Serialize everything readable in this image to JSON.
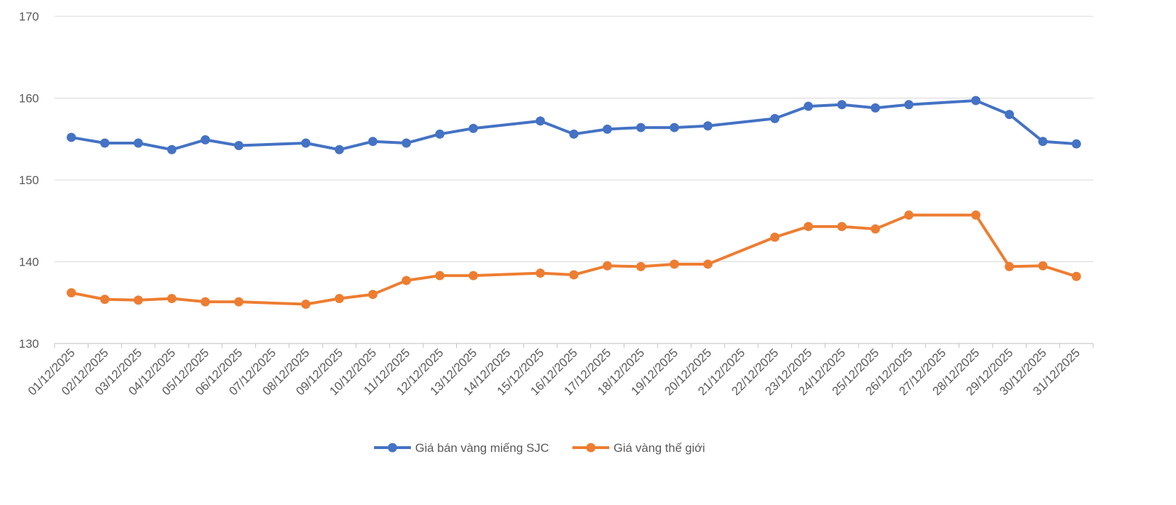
{
  "chart_data": {
    "type": "line",
    "title": "",
    "xlabel": "",
    "ylabel": "",
    "ylim": [
      130,
      170
    ],
    "yticks": [
      130,
      140,
      150,
      160,
      170
    ],
    "grid": true,
    "legend_placement": "bottom",
    "categories": [
      "01/12/2025",
      "02/12/2025",
      "03/12/2025",
      "04/12/2025",
      "05/12/2025",
      "06/12/2025",
      "07/12/2025",
      "08/12/2025",
      "09/12/2025",
      "10/12/2025",
      "11/12/2025",
      "12/12/2025",
      "13/12/2025",
      "14/12/2025",
      "15/12/2025",
      "16/12/2025",
      "17/12/2025",
      "18/12/2025",
      "19/12/2025",
      "20/12/2025",
      "21/12/2025",
      "22/12/2025",
      "23/12/2025",
      "24/12/2025",
      "25/12/2025",
      "26/12/2025",
      "27/12/2025",
      "28/12/2025",
      "29/12/2025",
      "30/12/2025",
      "31/12/2025"
    ],
    "series": [
      {
        "name": "Giá bán vàng miếng SJC",
        "color": "#4472C4",
        "values": [
          155.2,
          154.5,
          154.5,
          153.7,
          154.9,
          154.2,
          null,
          154.5,
          153.7,
          154.7,
          154.5,
          155.6,
          156.3,
          null,
          157.2,
          155.6,
          156.2,
          156.4,
          156.4,
          156.6,
          null,
          157.5,
          159.0,
          159.2,
          158.8,
          159.2,
          null,
          159.7,
          158.0,
          154.7,
          154.4
        ]
      },
      {
        "name": "Giá vàng thế giới",
        "color": "#ED7D31",
        "values": [
          136.2,
          135.4,
          135.3,
          135.5,
          135.1,
          135.1,
          null,
          134.8,
          135.5,
          136.0,
          137.7,
          138.3,
          138.3,
          null,
          138.6,
          138.4,
          139.5,
          139.4,
          139.7,
          139.7,
          null,
          143.0,
          144.3,
          144.3,
          144.0,
          145.7,
          null,
          145.7,
          139.4,
          139.5,
          138.2
        ]
      }
    ]
  }
}
